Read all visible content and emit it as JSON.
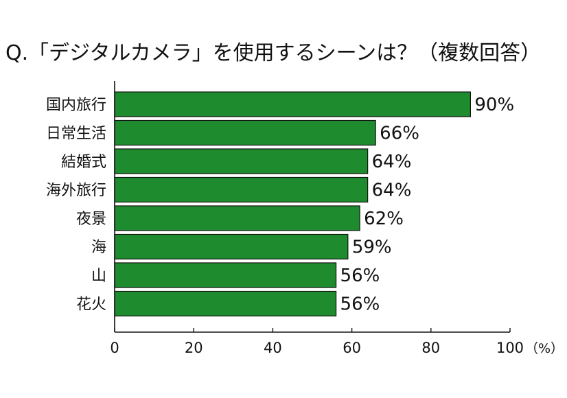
{
  "chart_data": {
    "type": "bar",
    "orientation": "horizontal",
    "title": "Q.「デジタルカメラ」を使用するシーンは？（複数回答）",
    "categories": [
      "国内旅行",
      "日常生活",
      "結婚式",
      "海外旅行",
      "夜景",
      "海",
      "山",
      "花火"
    ],
    "values": [
      90,
      66,
      64,
      64,
      62,
      59,
      56,
      56
    ],
    "value_labels": [
      "90%",
      "66%",
      "64%",
      "64%",
      "62%",
      "59%",
      "56%",
      "56%"
    ],
    "xlim": [
      0,
      100
    ],
    "x_ticks": [
      0,
      20,
      40,
      60,
      80,
      100
    ],
    "x_tick_labels": [
      "0",
      "20",
      "40",
      "60",
      "80",
      "100"
    ],
    "x_unit": "（%）",
    "grid": false,
    "legend": "none",
    "colors": {
      "bar_fill": "#1e8b2e",
      "bar_stroke": "#111111",
      "axis": "#111111"
    }
  }
}
